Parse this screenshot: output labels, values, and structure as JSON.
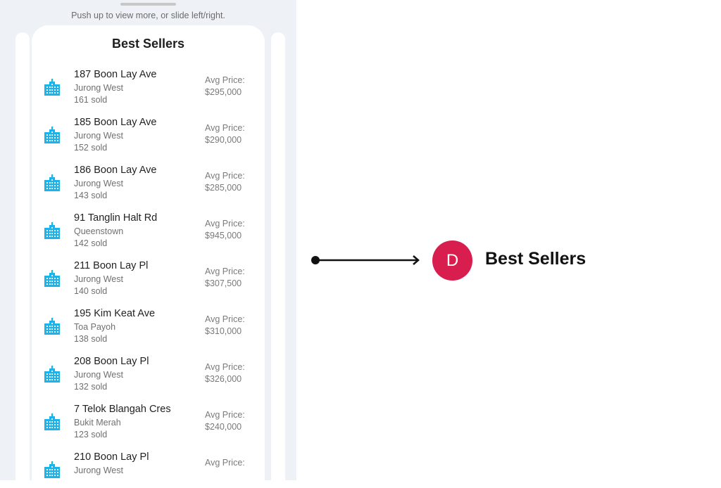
{
  "hint": "Push up to view more, or slide left/right.",
  "card_title": "Best Sellers",
  "icon": "building-icon",
  "accent": "#1ab3ea",
  "price_label": "Avg Price:",
  "items": [
    {
      "name": "187 Boon Lay Ave",
      "town": "Jurong West",
      "sold": "161 sold",
      "price": "$295,000"
    },
    {
      "name": "185 Boon Lay Ave",
      "town": "Jurong West",
      "sold": "152 sold",
      "price": "$290,000"
    },
    {
      "name": "186 Boon Lay Ave",
      "town": "Jurong West",
      "sold": "143 sold",
      "price": "$285,000"
    },
    {
      "name": "91 Tanglin Halt Rd",
      "town": "Queenstown",
      "sold": "142 sold",
      "price": "$945,000"
    },
    {
      "name": "211 Boon Lay Pl",
      "town": "Jurong West",
      "sold": "140 sold",
      "price": "$307,500"
    },
    {
      "name": "195 Kim Keat Ave",
      "town": "Toa Payoh",
      "sold": "138 sold",
      "price": "$310,000"
    },
    {
      "name": "208 Boon Lay Pl",
      "town": "Jurong West",
      "sold": "132 sold",
      "price": "$326,000"
    },
    {
      "name": "7 Telok Blangah Cres",
      "town": "Bukit Merah",
      "sold": "123 sold",
      "price": "$240,000"
    },
    {
      "name": "210 Boon Lay Pl",
      "town": "Jurong West"
    }
  ],
  "annotation": {
    "badge": "D",
    "label": "Best Sellers",
    "badge_color": "#d81e4e"
  }
}
